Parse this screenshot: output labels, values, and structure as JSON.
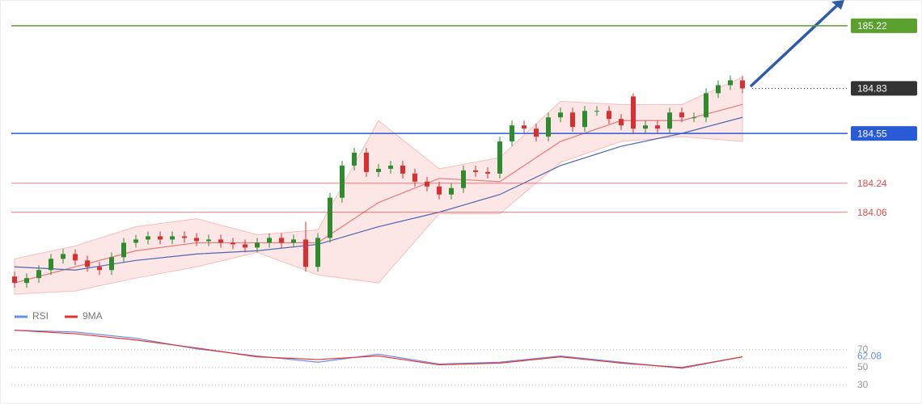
{
  "chart_data": {
    "type": "candlestick",
    "ylim": [
      183.47,
      185.38
    ],
    "open": [
      183.66,
      183.62,
      183.65,
      183.7,
      183.77,
      183.8,
      183.76,
      183.72,
      183.7,
      183.78,
      183.87,
      183.89,
      183.91,
      183.89,
      183.91,
      183.9,
      183.88,
      183.89,
      183.87,
      183.86,
      183.84,
      183.87,
      183.9,
      183.87,
      183.89,
      183.72,
      183.9,
      184.15,
      184.35,
      184.43,
      184.31,
      184.33,
      184.35,
      184.3,
      184.25,
      184.22,
      184.17,
      184.21,
      184.32,
      184.31,
      184.3,
      184.5,
      184.6,
      184.58,
      184.53,
      184.65,
      184.68,
      184.59,
      184.69,
      184.69,
      184.64,
      184.78,
      184.58,
      184.6,
      184.58,
      184.68,
      184.65,
      184.65,
      184.8,
      184.85,
      184.88
    ],
    "high": [
      183.69,
      183.68,
      183.73,
      183.8,
      183.83,
      183.83,
      183.79,
      183.75,
      183.81,
      183.9,
      183.92,
      183.94,
      183.94,
      183.94,
      183.94,
      183.93,
      183.92,
      183.92,
      183.9,
      183.89,
      183.9,
      183.93,
      183.93,
      183.92,
      184.0,
      183.93,
      184.18,
      184.38,
      184.46,
      184.46,
      184.36,
      184.38,
      184.38,
      184.33,
      184.28,
      184.25,
      184.24,
      184.35,
      184.35,
      184.34,
      184.53,
      184.63,
      184.63,
      184.61,
      184.68,
      184.71,
      184.71,
      184.72,
      184.72,
      184.72,
      184.67,
      184.8,
      184.63,
      184.63,
      184.71,
      184.71,
      184.68,
      184.83,
      184.88,
      184.91,
      184.91
    ],
    "low": [
      183.59,
      183.59,
      183.62,
      183.67,
      183.74,
      183.73,
      183.69,
      183.67,
      183.67,
      183.75,
      183.84,
      183.86,
      183.86,
      183.86,
      183.87,
      183.85,
      183.85,
      183.84,
      183.83,
      183.81,
      183.81,
      183.84,
      183.84,
      183.84,
      183.69,
      183.69,
      183.87,
      184.12,
      184.32,
      184.28,
      184.28,
      184.3,
      184.27,
      184.22,
      184.19,
      184.14,
      184.14,
      184.18,
      184.28,
      184.27,
      184.27,
      184.47,
      184.55,
      184.5,
      184.5,
      184.62,
      184.56,
      184.56,
      184.66,
      184.61,
      184.57,
      184.55,
      184.55,
      184.55,
      184.55,
      184.62,
      184.62,
      184.62,
      184.77,
      184.82,
      184.8
    ],
    "close": [
      183.62,
      183.65,
      183.7,
      183.77,
      183.8,
      183.76,
      183.72,
      183.7,
      183.78,
      183.87,
      183.89,
      183.91,
      183.89,
      183.91,
      183.9,
      183.88,
      183.89,
      183.87,
      183.86,
      183.84,
      183.87,
      183.9,
      183.87,
      183.89,
      183.72,
      183.9,
      184.15,
      184.35,
      184.43,
      184.31,
      184.33,
      184.35,
      184.3,
      184.25,
      184.22,
      184.17,
      184.21,
      184.32,
      184.31,
      184.3,
      184.5,
      184.6,
      184.58,
      184.53,
      184.65,
      184.68,
      184.59,
      184.69,
      184.69,
      184.64,
      184.6,
      184.58,
      184.6,
      184.58,
      184.68,
      184.65,
      184.65,
      184.8,
      184.85,
      184.88,
      184.83
    ],
    "band_upper": [
      183.77,
      183.85,
      183.97,
      184.02,
      183.92,
      183.95,
      184.63,
      184.33,
      184.4,
      184.75,
      184.73,
      184.73,
      184.9
    ],
    "band_lower": [
      183.55,
      183.57,
      183.65,
      183.72,
      183.81,
      183.67,
      183.62,
      184.05,
      184.05,
      184.37,
      184.5,
      184.53,
      184.5
    ],
    "ma_fast": {
      "color": "#e87a7a",
      "values": [
        183.62,
        183.72,
        183.82,
        183.87,
        183.87,
        183.87,
        184.12,
        184.27,
        184.25,
        184.5,
        184.63,
        184.63,
        184.73
      ]
    },
    "ma_slow": {
      "color": "#4a66b0",
      "values": [
        183.72,
        183.7,
        183.76,
        183.8,
        183.82,
        183.86,
        183.97,
        184.06,
        184.17,
        184.35,
        184.47,
        184.55,
        184.65
      ]
    },
    "levels": [
      {
        "value": 185.22,
        "color": "#5aa02c",
        "style": "box"
      },
      {
        "value": 184.83,
        "color": "#333333",
        "style": "current"
      },
      {
        "value": 184.55,
        "color": "#2a5bd7",
        "style": "box"
      },
      {
        "value": 184.24,
        "color": "#e84a4a",
        "style": "text"
      },
      {
        "value": 184.06,
        "color": "#e84a4a",
        "style": "text"
      }
    ],
    "rsi": {
      "ylim": [
        18,
        109
      ],
      "yticks": [
        70,
        50,
        30
      ],
      "series": [
        {
          "name": "RSI",
          "color": "#6b8ee6",
          "values": [
            92,
            90,
            83,
            71,
            63,
            56,
            65,
            54,
            56,
            63,
            56,
            49,
            62.08
          ]
        },
        {
          "name": "9MA",
          "color": "#e83030",
          "values": [
            92,
            88,
            81,
            72,
            62,
            59,
            63,
            53,
            55,
            62,
            55,
            50,
            62
          ]
        }
      ],
      "last_label": 62.08
    }
  }
}
